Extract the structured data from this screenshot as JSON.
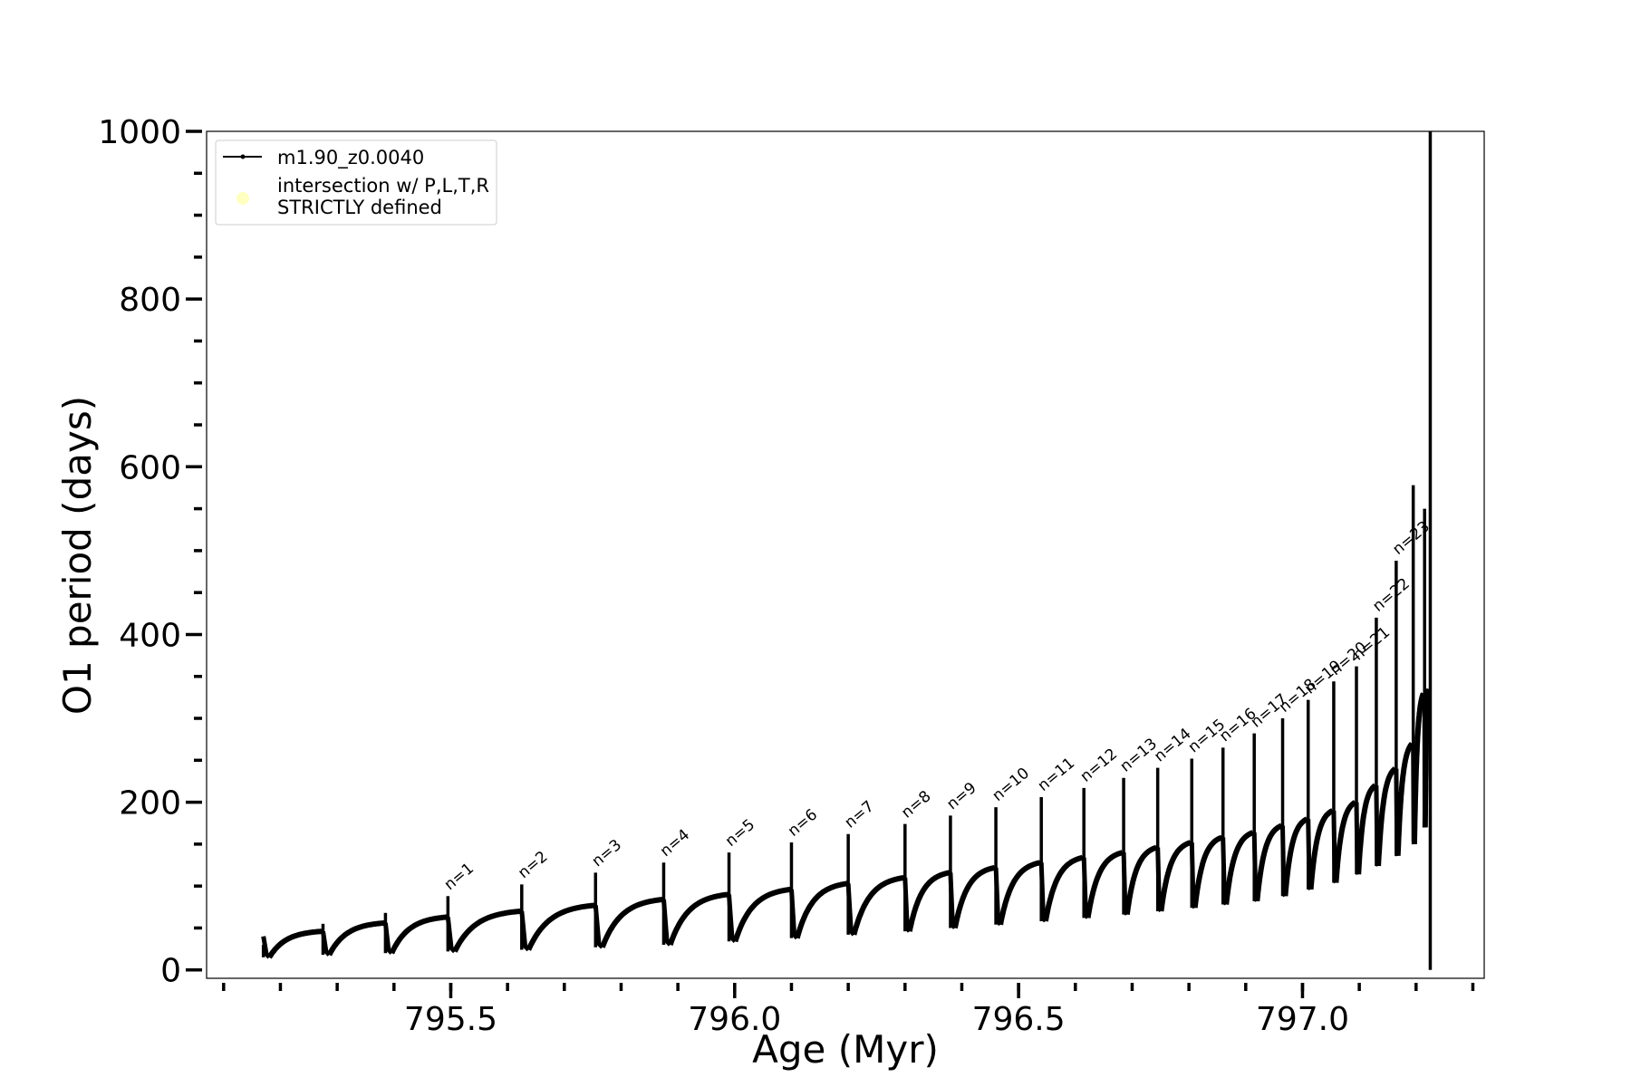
{
  "chart_data": {
    "type": "line",
    "title": "",
    "xlabel": "Age (Myr)",
    "ylabel": "O1 period (days)",
    "xlim": [
      795.07,
      797.32
    ],
    "ylim": [
      -10,
      1000
    ],
    "x_ticks": [
      795.5,
      796.0,
      796.5,
      797.0
    ],
    "x_tick_labels": [
      "795.5",
      "796.0",
      "796.5",
      "797.0"
    ],
    "x_minor_ticks": [
      795.1,
      795.2,
      795.3,
      795.4,
      795.5,
      795.6,
      795.7,
      795.8,
      795.9,
      796.0,
      796.1,
      796.2,
      796.3,
      796.4,
      796.5,
      796.6,
      796.7,
      796.8,
      796.9,
      797.0,
      797.1,
      797.2,
      797.3
    ],
    "y_ticks": [
      0,
      200,
      400,
      600,
      800,
      1000
    ],
    "y_tick_labels": [
      "0",
      "200",
      "400",
      "600",
      "800",
      "1000"
    ],
    "y_minor_step": 50,
    "grid": false,
    "legend": {
      "placement": "top-left",
      "entries": [
        {
          "label": "m1.90_z0.0040",
          "marker": "line-dot",
          "color": "#000000"
        },
        {
          "label_lines": [
            "intersection w/ P,L,T,R",
            "STRICTLY defined"
          ],
          "marker": "circle",
          "color": "#ffffc0"
        }
      ]
    },
    "series": [
      {
        "name": "m1.90_z0.0040",
        "color": "#000000",
        "pulse_ages": [
          795.17,
          795.275,
          795.385,
          795.495,
          795.625,
          795.755,
          795.875,
          795.99,
          796.1,
          796.2,
          796.3,
          796.38,
          796.46,
          796.54,
          796.615,
          796.685,
          796.745,
          796.805,
          796.86,
          796.915,
          796.965,
          797.01,
          797.055,
          797.095,
          797.13,
          797.165,
          797.195,
          797.215,
          797.225
        ],
        "pulse_peaks": [
          30,
          55,
          68,
          88,
          102,
          116,
          128,
          140,
          152,
          162,
          174,
          184,
          194,
          206,
          217,
          229,
          241,
          252,
          265,
          282,
          300,
          322,
          344,
          362,
          420,
          488,
          578,
          550,
          1000
        ],
        "pulse_minima": [
          15,
          18,
          20,
          22,
          24,
          27,
          30,
          34,
          38,
          42,
          46,
          50,
          54,
          58,
          62,
          66,
          70,
          74,
          78,
          82,
          88,
          96,
          104,
          114,
          124,
          136,
          150,
          170,
          0
        ],
        "pre_pulse_max": [
          40,
          46,
          56,
          63,
          70,
          77,
          84,
          90,
          96,
          103,
          110,
          116,
          122,
          128,
          134,
          140,
          146,
          152,
          158,
          164,
          172,
          180,
          190,
          200,
          220,
          240,
          270,
          330,
          335
        ]
      }
    ],
    "annotations": [
      {
        "text": "n=1",
        "x": 795.495,
        "y": 88
      },
      {
        "text": "n=2",
        "x": 795.625,
        "y": 102
      },
      {
        "text": "n=3",
        "x": 795.755,
        "y": 116
      },
      {
        "text": "n=4",
        "x": 795.875,
        "y": 128
      },
      {
        "text": "n=5",
        "x": 795.99,
        "y": 140
      },
      {
        "text": "n=6",
        "x": 796.1,
        "y": 152
      },
      {
        "text": "n=7",
        "x": 796.2,
        "y": 162
      },
      {
        "text": "n=8",
        "x": 796.3,
        "y": 174
      },
      {
        "text": "n=9",
        "x": 796.38,
        "y": 184
      },
      {
        "text": "n=10",
        "x": 796.46,
        "y": 194
      },
      {
        "text": "n=11",
        "x": 796.54,
        "y": 206
      },
      {
        "text": "n=12",
        "x": 796.615,
        "y": 217
      },
      {
        "text": "n=13",
        "x": 796.685,
        "y": 229
      },
      {
        "text": "n=14",
        "x": 796.745,
        "y": 241
      },
      {
        "text": "n=15",
        "x": 796.805,
        "y": 252
      },
      {
        "text": "n=16",
        "x": 796.86,
        "y": 265
      },
      {
        "text": "n=17",
        "x": 796.915,
        "y": 282
      },
      {
        "text": "n=18",
        "x": 796.965,
        "y": 300
      },
      {
        "text": "n=19",
        "x": 797.01,
        "y": 322
      },
      {
        "text": "n=20",
        "x": 797.055,
        "y": 344
      },
      {
        "text": "n=21",
        "x": 797.095,
        "y": 362
      },
      {
        "text": "n=22",
        "x": 797.13,
        "y": 420
      },
      {
        "text": "n=23",
        "x": 797.165,
        "y": 488
      }
    ]
  }
}
